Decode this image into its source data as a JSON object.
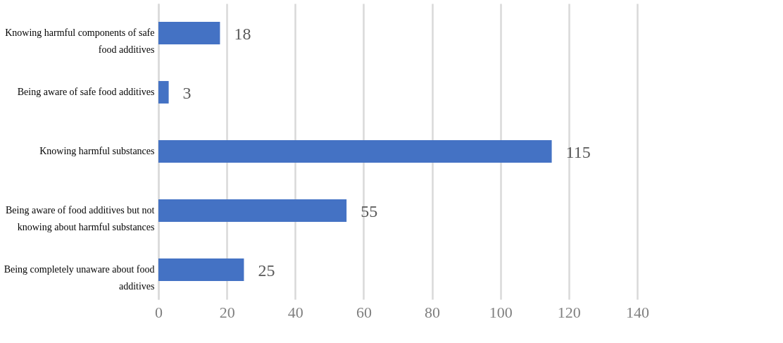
{
  "chart_data": {
    "type": "bar",
    "orientation": "horizontal",
    "categories": [
      "Knowing harmful components of safe food additives",
      "Being aware of safe food additives",
      "Knowing harmful substances",
      "Being aware of food additives but not knowing about harmful substances",
      "Being completely unaware about food additives"
    ],
    "values": [
      18,
      3,
      115,
      55,
      25
    ],
    "color": "#4472c4",
    "xlim": [
      0,
      140
    ],
    "xticks": [
      0,
      20,
      40,
      60,
      80,
      100,
      120,
      140
    ],
    "grid": "x",
    "data_labels": true
  }
}
